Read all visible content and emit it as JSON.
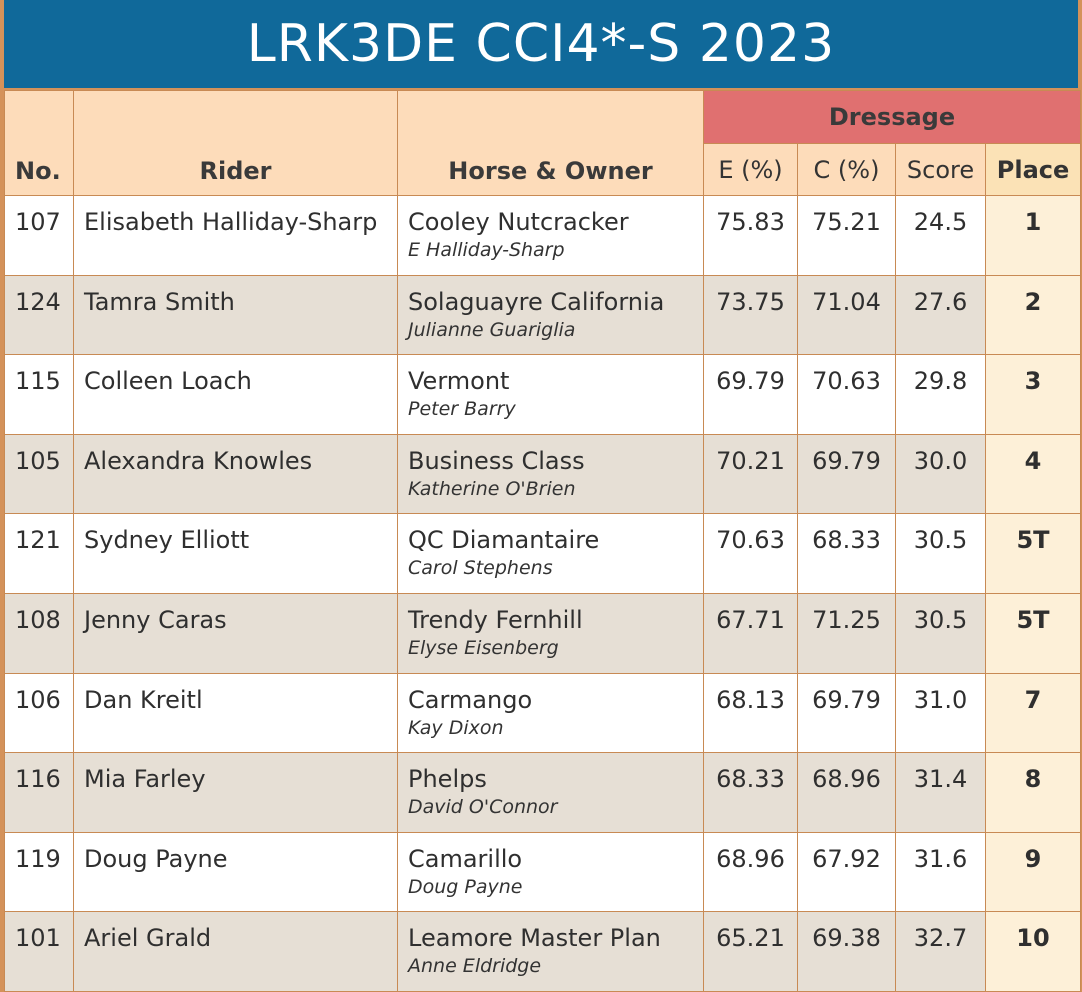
{
  "title": "LRK3DE CCI4*-S 2023",
  "headers": {
    "no": "No.",
    "rider": "Rider",
    "horse_owner": "Horse & Owner",
    "dressage": "Dressage",
    "e_pct": "E (%)",
    "c_pct": "C (%)",
    "score": "Score",
    "place": "Place"
  },
  "rows": [
    {
      "no": "107",
      "rider": "Elisabeth Halliday-Sharp",
      "horse": "Cooley Nutcracker",
      "owner": "E Halliday-Sharp",
      "e": "75.83",
      "c": "75.21",
      "score": "24.5",
      "place": "1"
    },
    {
      "no": "124",
      "rider": "Tamra Smith",
      "horse": "Solaguayre California",
      "owner": "Julianne Guariglia",
      "e": "73.75",
      "c": "71.04",
      "score": "27.6",
      "place": "2"
    },
    {
      "no": "115",
      "rider": "Colleen Loach",
      "horse": "Vermont",
      "owner": "Peter Barry",
      "e": "69.79",
      "c": "70.63",
      "score": "29.8",
      "place": "3"
    },
    {
      "no": "105",
      "rider": "Alexandra Knowles",
      "horse": "Business Class",
      "owner": "Katherine O'Brien",
      "e": "70.21",
      "c": "69.79",
      "score": "30.0",
      "place": "4"
    },
    {
      "no": "121",
      "rider": "Sydney Elliott",
      "horse": "QC Diamantaire",
      "owner": "Carol Stephens",
      "e": "70.63",
      "c": "68.33",
      "score": "30.5",
      "place": "5T"
    },
    {
      "no": "108",
      "rider": "Jenny Caras",
      "horse": "Trendy Fernhill",
      "owner": "Elyse Eisenberg",
      "e": "67.71",
      "c": "71.25",
      "score": "30.5",
      "place": "5T"
    },
    {
      "no": "106",
      "rider": "Dan Kreitl",
      "horse": "Carmango",
      "owner": "Kay Dixon",
      "e": "68.13",
      "c": "69.79",
      "score": "31.0",
      "place": "7"
    },
    {
      "no": "116",
      "rider": "Mia Farley",
      "horse": "Phelps",
      "owner": "David O'Connor",
      "e": "68.33",
      "c": "68.96",
      "score": "31.4",
      "place": "8"
    },
    {
      "no": "119",
      "rider": "Doug Payne",
      "horse": "Camarillo",
      "owner": "Doug Payne",
      "e": "68.96",
      "c": "67.92",
      "score": "31.6",
      "place": "9"
    },
    {
      "no": "101",
      "rider": "Ariel Grald",
      "horse": "Leamore Master Plan",
      "owner": "Anne Eldridge",
      "e": "65.21",
      "c": "69.38",
      "score": "32.7",
      "place": "10"
    }
  ],
  "colors": {
    "title_bg": "#10699a",
    "header_bg": "#fddcba",
    "dressage_bg": "#e07070",
    "place_bg": "#fdf0d8",
    "row_alt": "#e6dfd5",
    "border": "#c88a54"
  }
}
